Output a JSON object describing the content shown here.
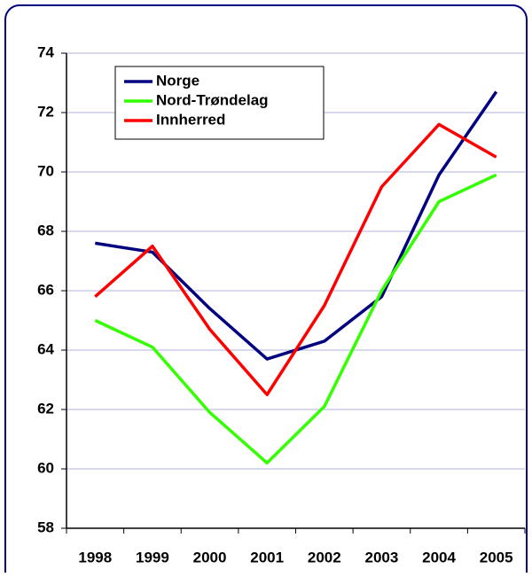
{
  "chart_data": {
    "type": "line",
    "categories": [
      "1998",
      "1999",
      "2000",
      "2001",
      "2002",
      "2003",
      "2004",
      "2005"
    ],
    "series": [
      {
        "name": "Norge",
        "color": "#000080",
        "values": [
          67.6,
          67.3,
          65.4,
          63.7,
          64.3,
          65.8,
          69.9,
          72.7
        ]
      },
      {
        "name": "Nord-Trøndelag",
        "color": "#33ff00",
        "values": [
          65.0,
          64.1,
          61.9,
          60.2,
          62.1,
          66.0,
          69.0,
          69.9
        ]
      },
      {
        "name": "Innherred",
        "color": "#ff0000",
        "values": [
          65.8,
          67.5,
          64.7,
          62.5,
          65.5,
          69.5,
          71.6,
          70.5
        ]
      }
    ],
    "ylim": [
      58,
      74
    ],
    "yticks": [
      58,
      60,
      62,
      64,
      66,
      68,
      70,
      72,
      74
    ],
    "grid": true,
    "legend": "top-left"
  }
}
